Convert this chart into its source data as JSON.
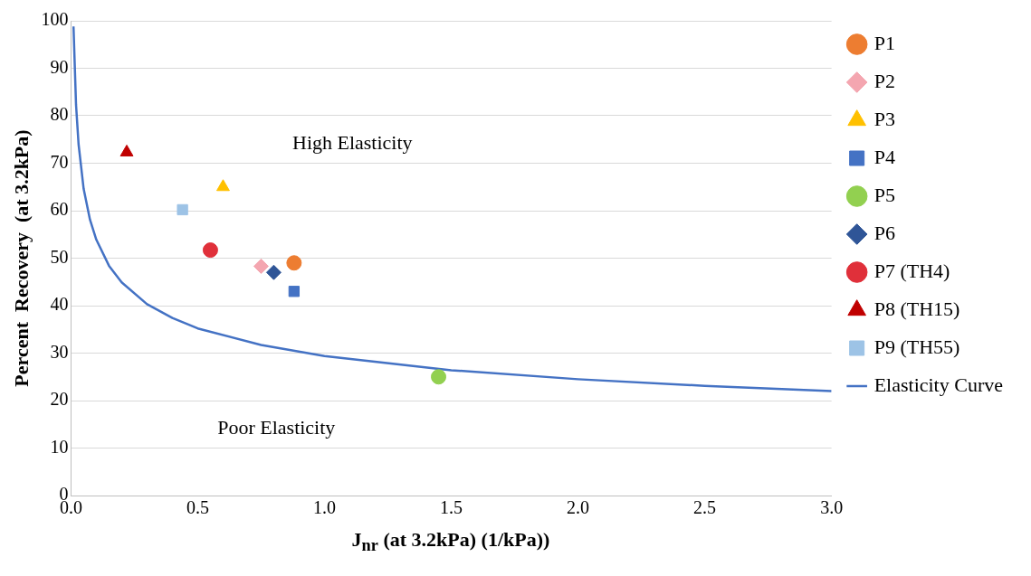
{
  "chart_data": {
    "type": "scatter",
    "xlabel": "J$_{nr}$ (at 3.2kPa) (1/kPa))",
    "ylabel": "Percent  Recovery  (at 3.2kPa)",
    "xlim": [
      0,
      3
    ],
    "xticks": [
      {
        "value": 0,
        "label": "0.0"
      },
      {
        "value": 0.5,
        "label": "0.5"
      },
      {
        "value": 1,
        "label": "1.0"
      },
      {
        "value": 1.5,
        "label": "1.5"
      },
      {
        "value": 2,
        "label": "2.0"
      },
      {
        "value": 2.5,
        "label": "2.5"
      },
      {
        "value": 3,
        "label": "3.0"
      }
    ],
    "ylim": [
      0,
      100
    ],
    "yticks": [
      0,
      10,
      20,
      30,
      40,
      50,
      60,
      70,
      80,
      90,
      100
    ],
    "grid": "y",
    "legend": "right",
    "series": [
      {
        "name": "P1",
        "color": "#ed7d31",
        "marker": "circle",
        "x": [
          0.88
        ],
        "values": [
          49
        ]
      },
      {
        "name": "P2",
        "color": "#f4a6b0",
        "marker": "diamond",
        "x": [
          0.75
        ],
        "values": [
          48.3
        ]
      },
      {
        "name": "P3",
        "color": "#ffc000",
        "marker": "triangle",
        "x": [
          0.6
        ],
        "values": [
          65
        ]
      },
      {
        "name": "P4",
        "color": "#4472c4",
        "marker": "square",
        "x": [
          0.88
        ],
        "values": [
          43
        ]
      },
      {
        "name": "P5",
        "color": "#92d050",
        "marker": "circle",
        "x": [
          1.45
        ],
        "values": [
          25
        ]
      },
      {
        "name": "P6",
        "color": "#2f5597",
        "marker": "diamond",
        "x": [
          0.8
        ],
        "values": [
          47
        ]
      },
      {
        "name": "P7 (TH4)",
        "color": "#e0303a",
        "marker": "circle",
        "x": [
          0.55
        ],
        "values": [
          51.7
        ]
      },
      {
        "name": "P8 (TH15)",
        "color": "#c00000",
        "marker": "triangle",
        "x": [
          0.22
        ],
        "values": [
          72.3
        ]
      },
      {
        "name": "P9 (TH55)",
        "color": "#9dc3e6",
        "marker": "square",
        "x": [
          0.44
        ],
        "values": [
          60.2
        ]
      },
      {
        "name": "Elasticity Curve",
        "type": "line",
        "color": "#4472c4",
        "marker": "none",
        "x": [
          0.01,
          0.02,
          0.03,
          0.05,
          0.075,
          0.1,
          0.15,
          0.2,
          0.3,
          0.4,
          0.5,
          0.75,
          1,
          1.5,
          2,
          2.5,
          3
        ],
        "values": [
          98.8,
          82.3,
          74.0,
          64.6,
          58.1,
          53.9,
          48.4,
          44.9,
          40.3,
          37.4,
          35.2,
          31.7,
          29.4,
          26.4,
          24.5,
          23.1,
          22.0
        ]
      }
    ],
    "annotations": [
      "High Elasticity",
      "Poor Elasticity"
    ]
  }
}
